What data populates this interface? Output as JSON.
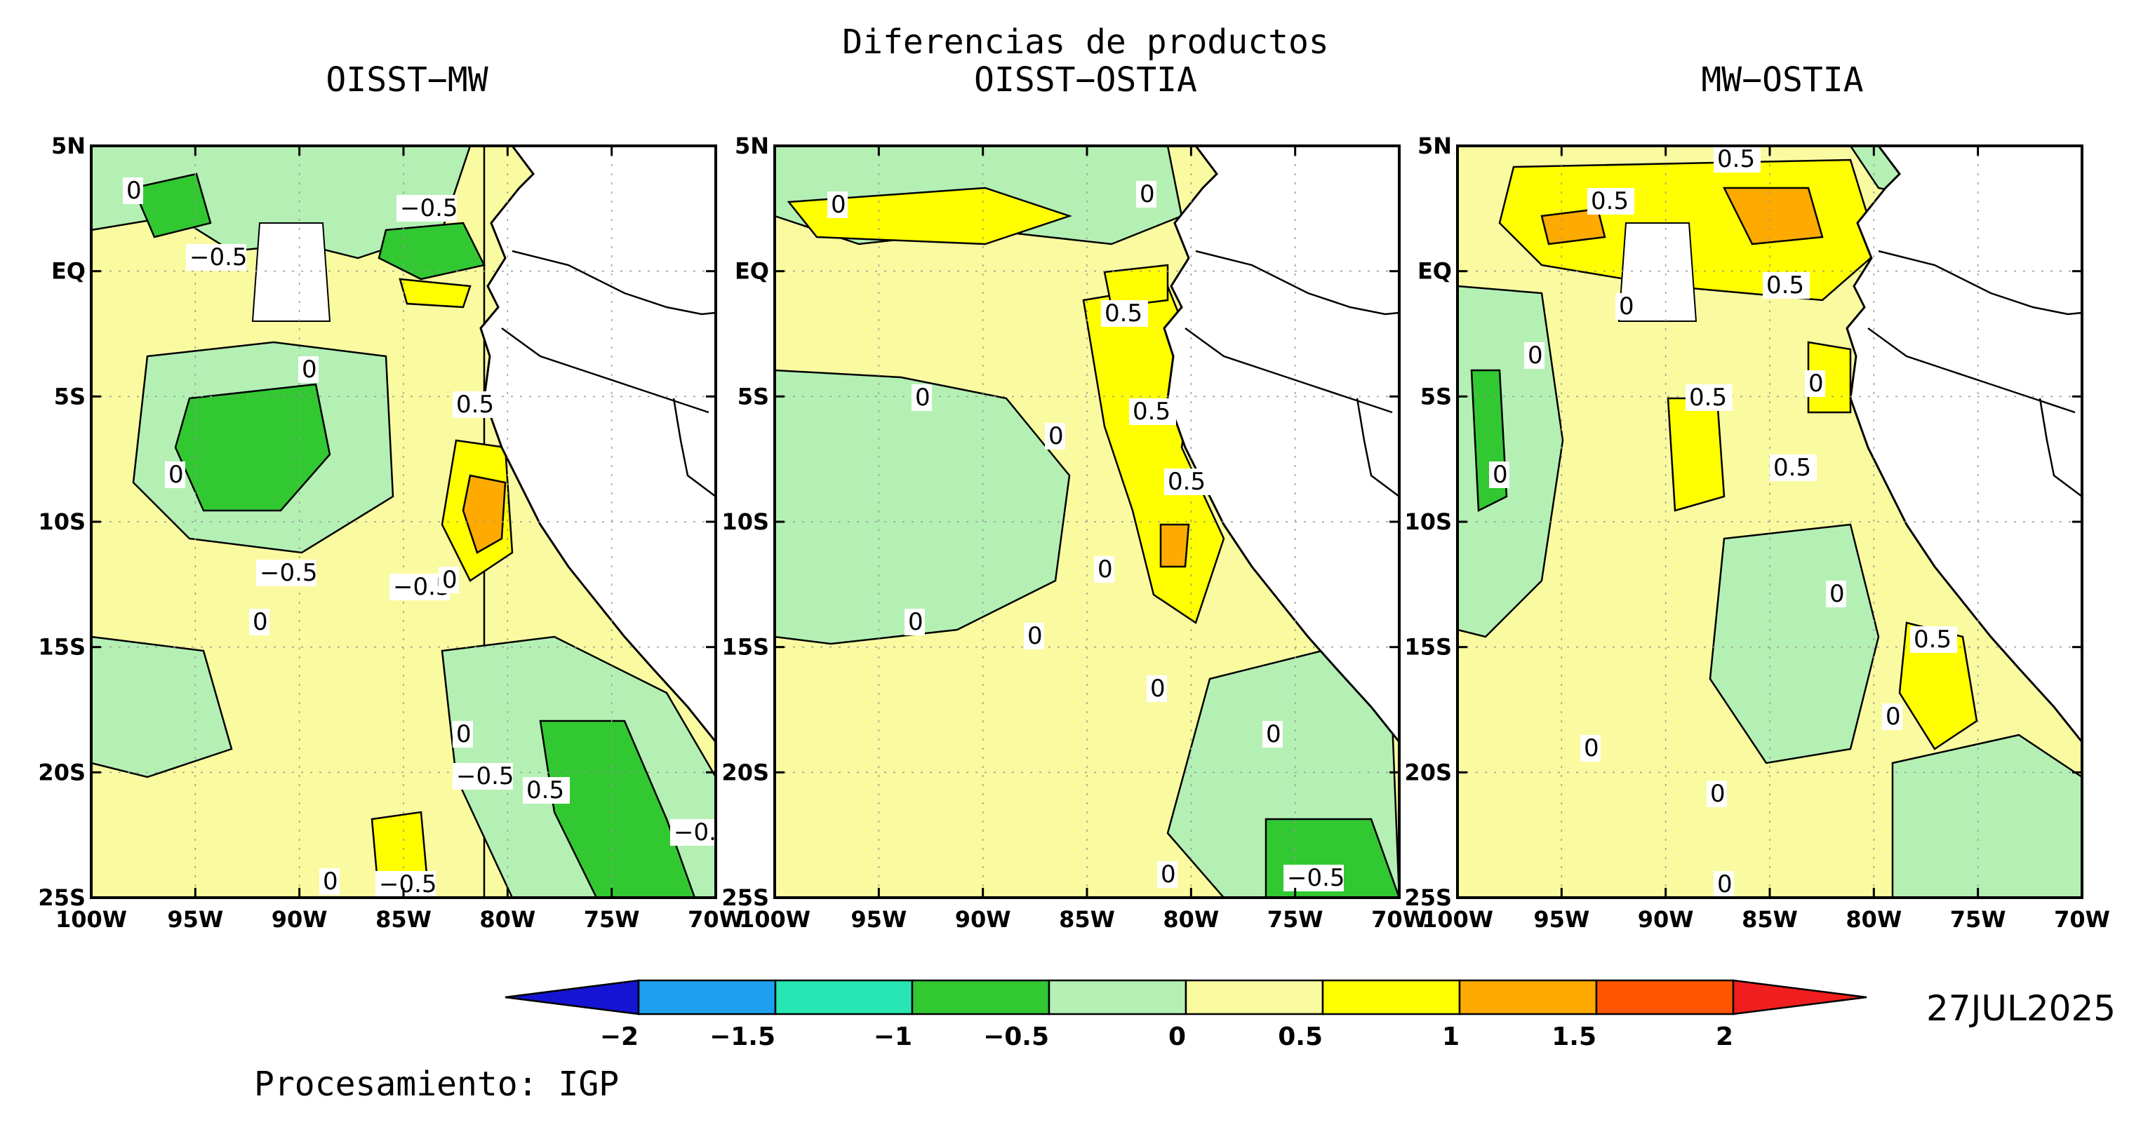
{
  "title": "Diferencias de productos",
  "panels": [
    {
      "title": "OISST−MW",
      "contour_labels": [
        "0",
        "−0.5",
        "−0.5",
        "0",
        "0.5",
        "0",
        "−0.5",
        "−0.5",
        "0",
        "0",
        "0",
        "−0.5",
        "−0.5",
        "0",
        "0.5",
        "−0."
      ]
    },
    {
      "title": "OISST−OSTIA",
      "contour_labels": [
        "0",
        "0",
        "0.5",
        "0",
        "0.5",
        "0",
        "0.5",
        "0",
        "0",
        "0",
        "0",
        "0",
        "0",
        "−0.5"
      ]
    },
    {
      "title": "MW−OSTIA",
      "contour_labels": [
        "0.5",
        "0.5",
        "0.5",
        "0",
        "0",
        "0",
        "0.5",
        "0",
        "0.5",
        "0",
        "0.5",
        "0",
        "0",
        "0",
        "0"
      ]
    }
  ],
  "lat_ticks": [
    "5N",
    "EQ",
    "5S",
    "10S",
    "15S",
    "20S",
    "25S"
  ],
  "lon_ticks": [
    "100W",
    "95W",
    "90W",
    "85W",
    "80W",
    "75W",
    "70W"
  ],
  "colorbar": {
    "labels": [
      "−2",
      "−1.5",
      "−1",
      "−0.5",
      "0",
      "0.5",
      "1",
      "1.5",
      "2"
    ],
    "colors": [
      "#1414d2",
      "#1ea0f0",
      "#28e6b4",
      "#32c832",
      "#b4f0b4",
      "#fafaa0",
      "#ffff00",
      "#ffaa00",
      "#ff5500",
      "#f01e1e"
    ]
  },
  "date": "27JUL2025",
  "credit": "Procesamiento: IGP",
  "palette": {
    "land": "#ffffff",
    "neg_light": "#b4f0b4",
    "neg": "#32c832",
    "neg_strong": "#28e6b4",
    "pos_light": "#fafaa0",
    "pos": "#ffff00",
    "pos_strong": "#ffaa00"
  }
}
